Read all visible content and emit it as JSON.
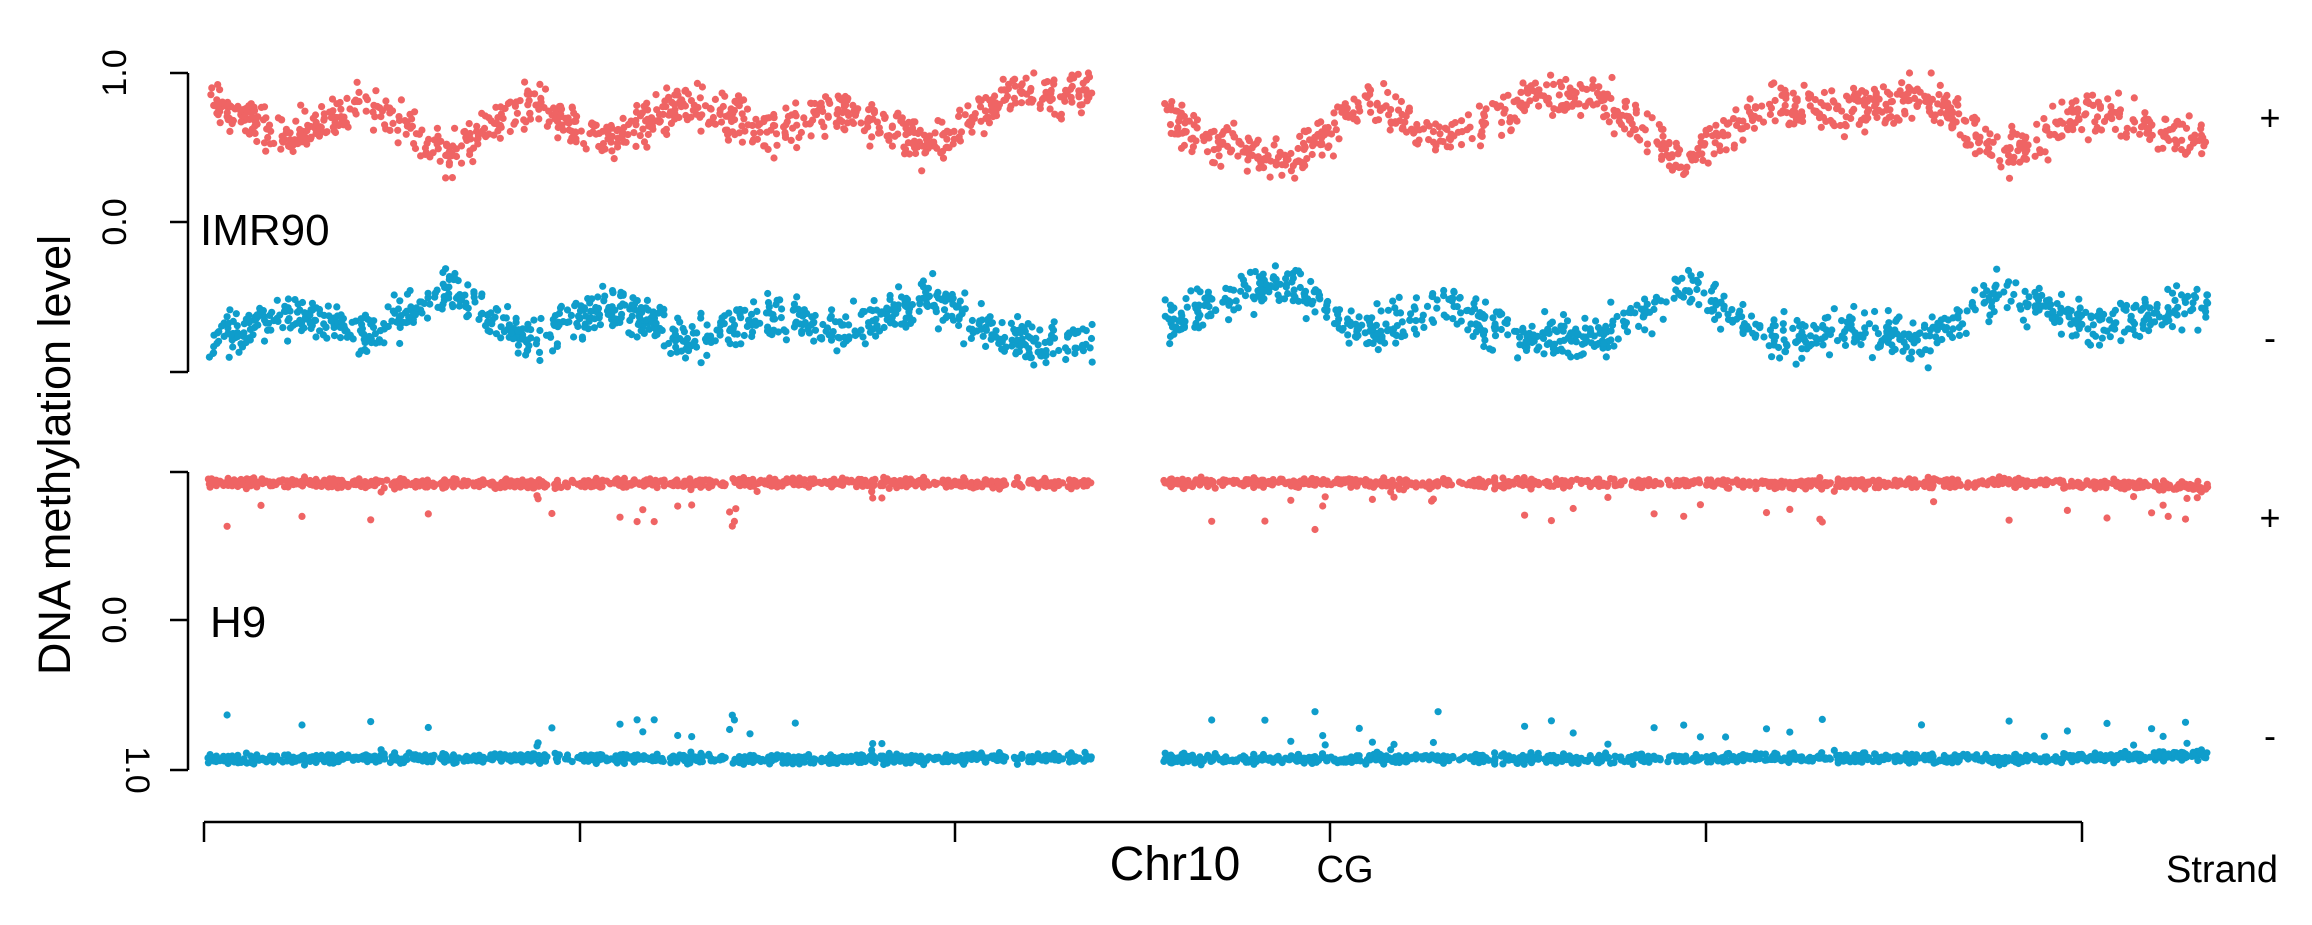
{
  "chart_data": {
    "type": "scatter",
    "title": "",
    "xlabel": "Chr10",
    "context_label": "CG",
    "ylabel": "DNA methylation level",
    "strand_label": "Strand",
    "colors": {
      "plus": "#ef6464",
      "minus": "#0f9dcb",
      "axis": "#000000"
    },
    "x_range": [
      0,
      1
    ],
    "panels": [
      {
        "sample": "IMR90",
        "y_ticks_top": [
          "1.0",
          "0.0"
        ],
        "y_ticks_bottom": [],
        "plus_label": "+",
        "minus_label": "-",
        "pattern": "variable",
        "plus": {
          "x": [
            0.0,
            0.04,
            0.08,
            0.12,
            0.16,
            0.2,
            0.24,
            0.28,
            0.32,
            0.36,
            0.4,
            0.46,
            0.5,
            0.54,
            0.58,
            0.62,
            0.66,
            0.7,
            0.74,
            0.78,
            0.82,
            0.86,
            0.9,
            0.94,
            0.98,
            1.0
          ],
          "y": [
            0.85,
            0.55,
            0.8,
            0.45,
            0.8,
            0.55,
            0.8,
            0.6,
            0.75,
            0.5,
            0.85,
            0.85,
            0.55,
            0.4,
            0.8,
            0.55,
            0.85,
            0.8,
            0.4,
            0.8,
            0.75,
            0.85,
            0.45,
            0.75,
            0.6,
            0.55
          ]
        },
        "minus": {
          "x": [
            0.0,
            0.04,
            0.08,
            0.12,
            0.16,
            0.2,
            0.24,
            0.28,
            0.32,
            0.36,
            0.4,
            0.46,
            0.5,
            0.54,
            0.58,
            0.62,
            0.66,
            0.7,
            0.74,
            0.78,
            0.82,
            0.86,
            0.9,
            0.94,
            0.98,
            1.0
          ],
          "y": [
            0.8,
            0.6,
            0.75,
            0.45,
            0.8,
            0.55,
            0.8,
            0.6,
            0.75,
            0.5,
            0.8,
            0.8,
            0.55,
            0.4,
            0.75,
            0.55,
            0.8,
            0.75,
            0.4,
            0.8,
            0.7,
            0.8,
            0.45,
            0.7,
            0.6,
            0.55
          ]
        }
      },
      {
        "sample": "H9",
        "y_ticks_top": [
          "0.0"
        ],
        "y_ticks_bottom": [
          "1.0"
        ],
        "plus_label": "+",
        "minus_label": "-",
        "pattern": "high",
        "plus": {
          "x": [
            0.0,
            0.1,
            0.2,
            0.3,
            0.4,
            0.46,
            0.5,
            0.6,
            0.7,
            0.8,
            0.9,
            1.0
          ],
          "y": [
            0.93,
            0.92,
            0.92,
            0.93,
            0.92,
            0.92,
            0.93,
            0.92,
            0.93,
            0.92,
            0.93,
            0.9
          ]
        },
        "minus": {
          "x": [
            0.0,
            0.1,
            0.2,
            0.3,
            0.4,
            0.46,
            0.5,
            0.6,
            0.7,
            0.8,
            0.9,
            1.0
          ],
          "y": [
            0.93,
            0.92,
            0.92,
            0.93,
            0.92,
            0.92,
            0.93,
            0.92,
            0.93,
            0.92,
            0.93,
            0.9
          ]
        }
      }
    ],
    "gap": [
      0.4425,
      0.4775
    ],
    "grid": false,
    "legend": "none"
  }
}
